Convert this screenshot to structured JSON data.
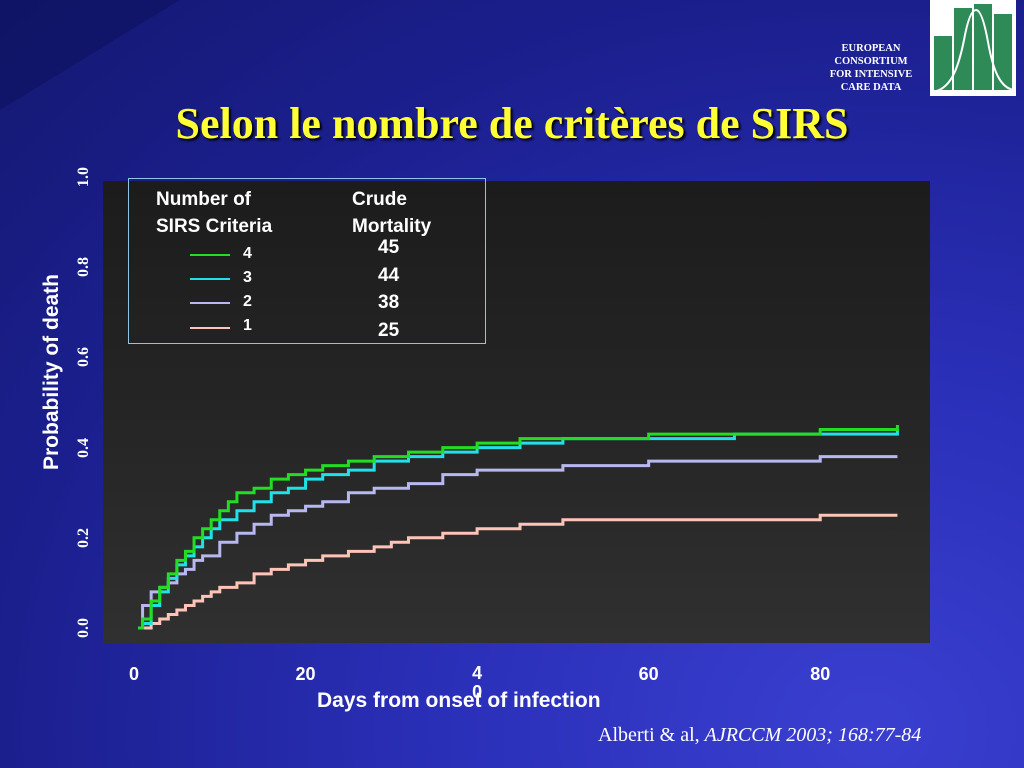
{
  "slide": {
    "title": "Selon le nombre de critères de SIRS",
    "logo": {
      "lines": [
        "EUROPEAN",
        "CONSORTIUM",
        "FOR INTENSIVE",
        "CARE DATA"
      ]
    },
    "citation": {
      "authors": "Alberti & al,",
      "journal": "AJRCCM 2003; 168:77-84"
    }
  },
  "chart_data": {
    "type": "line",
    "title": "",
    "xlabel": "Days from onset of infection",
    "ylabel": "Probability of death",
    "xlim": [
      0,
      90
    ],
    "ylim": [
      0,
      1.0
    ],
    "x_ticks": [
      {
        "value": 0,
        "label": "0"
      },
      {
        "value": 20,
        "label": "20"
      },
      {
        "value": 40,
        "label": "4\n0"
      },
      {
        "value": 60,
        "label": "60"
      },
      {
        "value": 80,
        "label": "80"
      }
    ],
    "y_ticks": [
      {
        "value": 0.0,
        "label": "0.0"
      },
      {
        "value": 0.2,
        "label": "0.2"
      },
      {
        "value": 0.4,
        "label": "0.4"
      },
      {
        "value": 0.6,
        "label": "0.6"
      },
      {
        "value": 0.8,
        "label": "0.8"
      },
      {
        "value": 1.0,
        "label": "1.0"
      }
    ],
    "legend": {
      "header_col1": [
        "Number of",
        "SIRS Criteria"
      ],
      "header_col2": [
        "Crude",
        "Mortality"
      ],
      "placement": "top-left"
    },
    "series": [
      {
        "name": "4",
        "mortality": "45",
        "color": "#22dd22",
        "x": [
          0.5,
          1,
          2,
          3,
          4,
          5,
          6,
          7,
          8,
          9,
          10,
          11,
          12,
          14,
          16,
          18,
          20,
          22,
          25,
          28,
          32,
          36,
          40,
          45,
          50,
          60,
          70,
          80,
          89
        ],
        "y": [
          0.0,
          0.02,
          0.06,
          0.09,
          0.12,
          0.15,
          0.17,
          0.2,
          0.22,
          0.24,
          0.26,
          0.28,
          0.3,
          0.31,
          0.33,
          0.34,
          0.35,
          0.36,
          0.37,
          0.38,
          0.39,
          0.4,
          0.41,
          0.42,
          0.42,
          0.43,
          0.43,
          0.44,
          0.45
        ]
      },
      {
        "name": "3",
        "mortality": "44",
        "color": "#22e0e8",
        "x": [
          0.5,
          1,
          2,
          3,
          4,
          5,
          6,
          7,
          8,
          9,
          10,
          12,
          14,
          16,
          18,
          20,
          22,
          25,
          28,
          32,
          36,
          40,
          45,
          50,
          60,
          70,
          80,
          89
        ],
        "y": [
          0.0,
          0.01,
          0.05,
          0.08,
          0.11,
          0.14,
          0.16,
          0.18,
          0.2,
          0.22,
          0.24,
          0.26,
          0.28,
          0.3,
          0.31,
          0.33,
          0.34,
          0.35,
          0.37,
          0.38,
          0.39,
          0.4,
          0.41,
          0.42,
          0.42,
          0.43,
          0.43,
          0.44
        ]
      },
      {
        "name": "2",
        "mortality": "38",
        "color": "#b8b8f0",
        "x": [
          0.5,
          1,
          2,
          3,
          4,
          5,
          6,
          7,
          8,
          10,
          12,
          14,
          16,
          18,
          20,
          22,
          25,
          28,
          32,
          36,
          40,
          45,
          50,
          60,
          70,
          80,
          89
        ],
        "y": [
          0.0,
          0.05,
          0.08,
          0.09,
          0.1,
          0.12,
          0.13,
          0.15,
          0.16,
          0.19,
          0.21,
          0.23,
          0.25,
          0.26,
          0.27,
          0.28,
          0.3,
          0.31,
          0.32,
          0.34,
          0.35,
          0.35,
          0.36,
          0.37,
          0.37,
          0.38,
          0.38
        ]
      },
      {
        "name": "1",
        "mortality": "25",
        "color": "#ffc4b8",
        "x": [
          0.5,
          2,
          3,
          4,
          5,
          6,
          7,
          8,
          9,
          10,
          12,
          14,
          16,
          18,
          20,
          22,
          25,
          28,
          30,
          32,
          36,
          40,
          45,
          50,
          60,
          70,
          80,
          89
        ],
        "y": [
          0.0,
          0.01,
          0.02,
          0.03,
          0.04,
          0.05,
          0.06,
          0.07,
          0.08,
          0.09,
          0.1,
          0.12,
          0.13,
          0.14,
          0.15,
          0.16,
          0.17,
          0.18,
          0.19,
          0.2,
          0.21,
          0.22,
          0.23,
          0.24,
          0.24,
          0.24,
          0.25,
          0.25
        ]
      }
    ]
  }
}
